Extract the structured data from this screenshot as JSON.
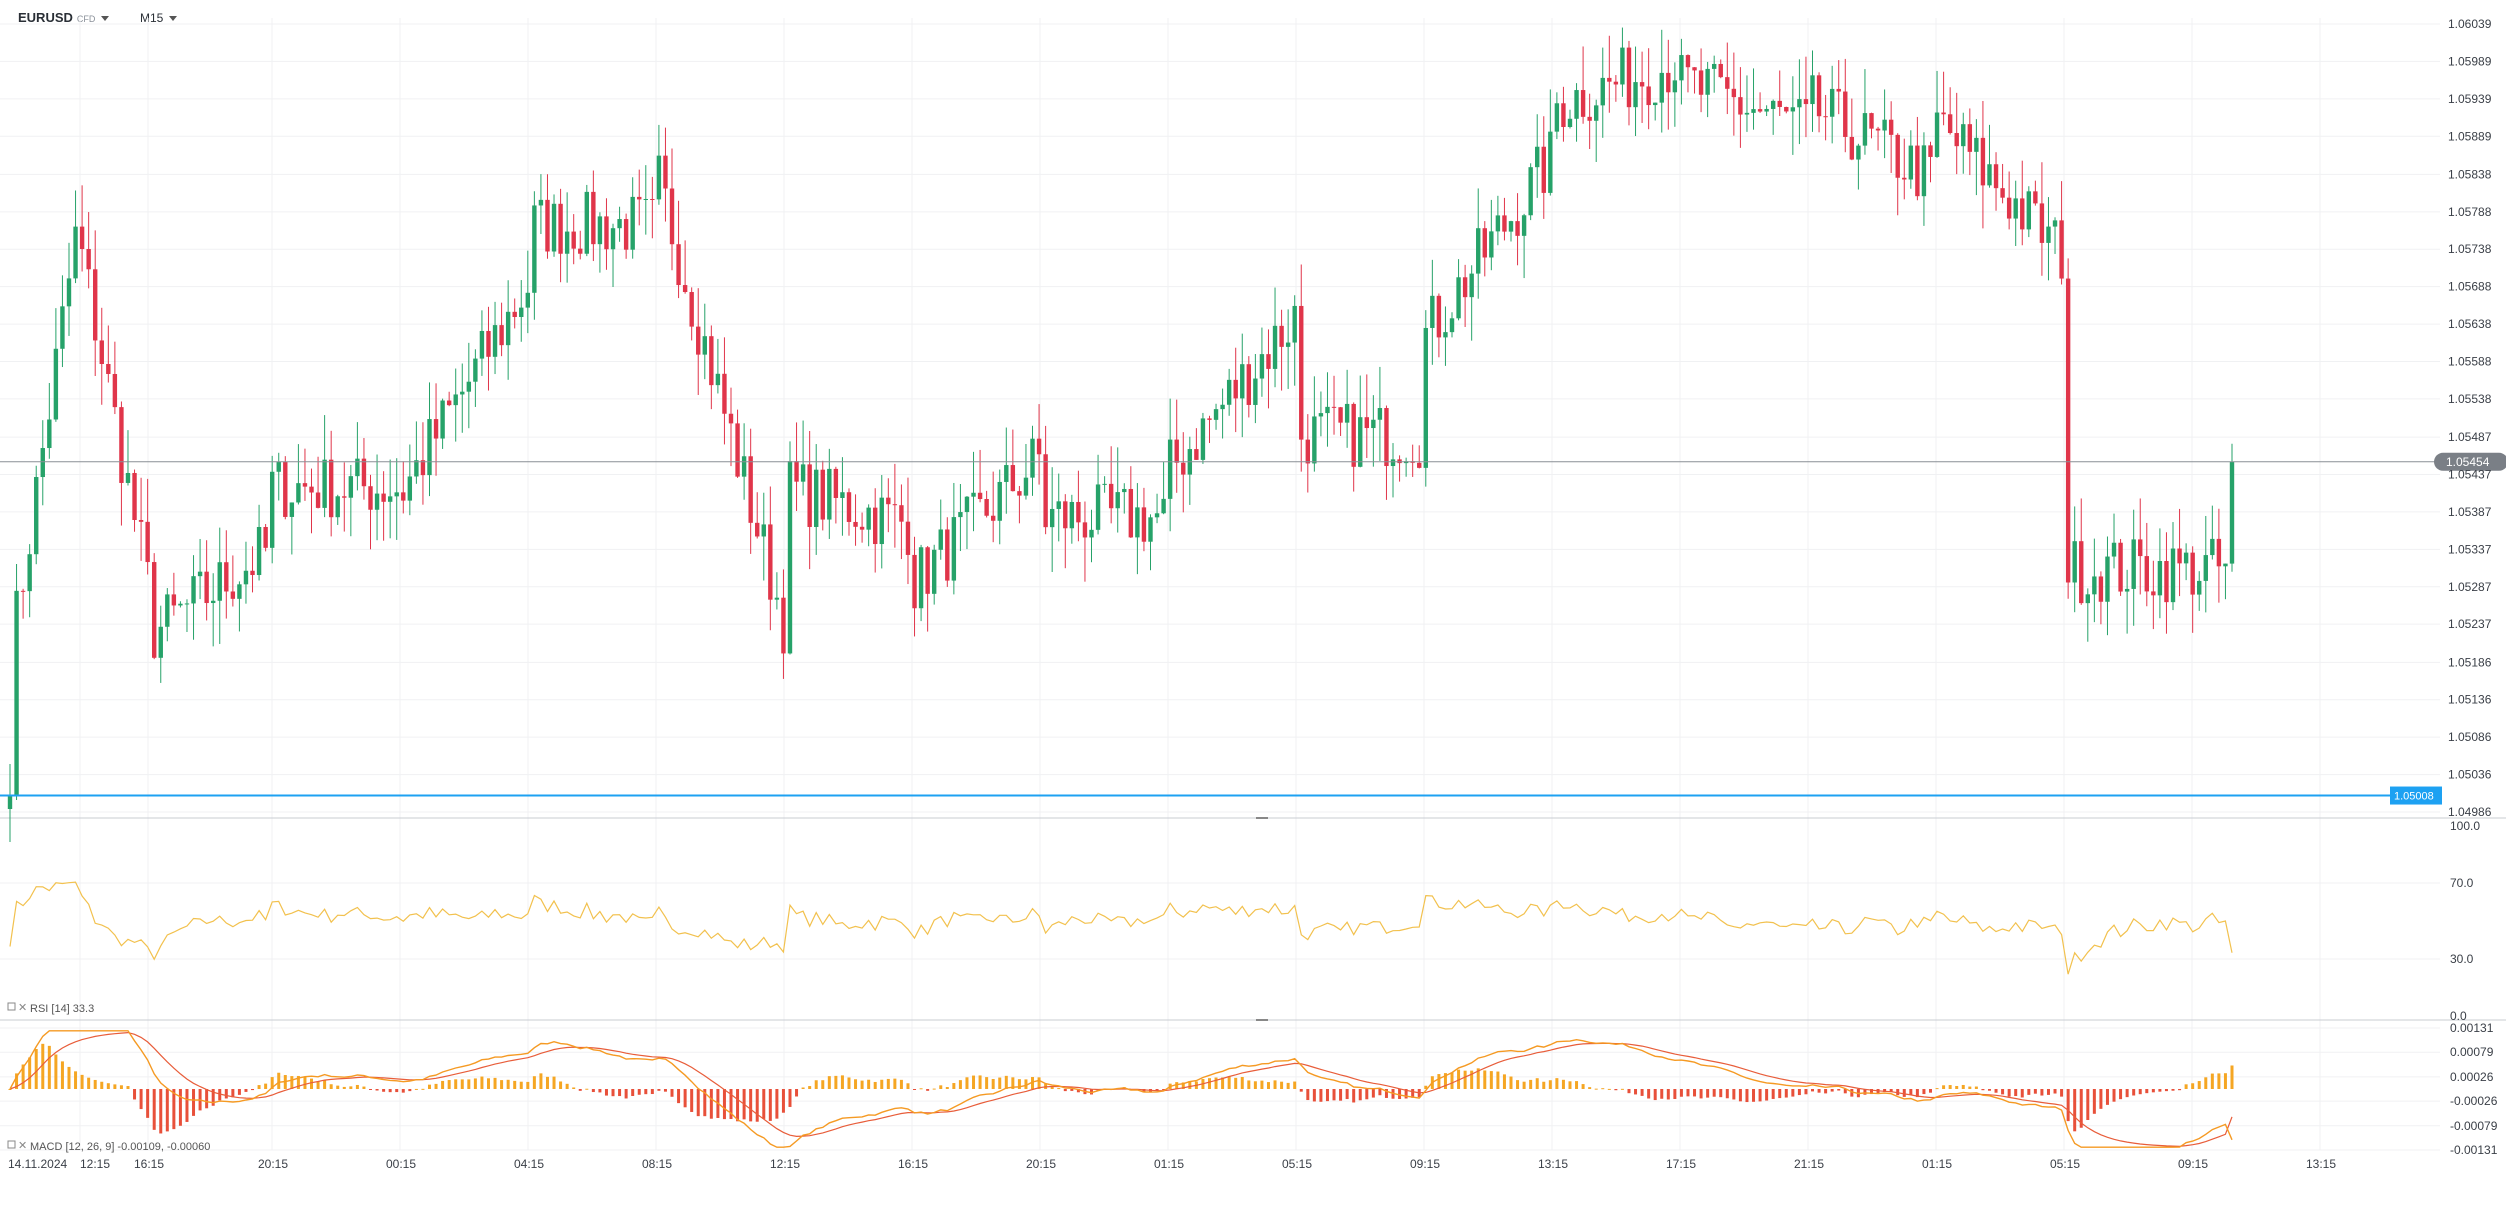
{
  "header": {
    "symbol": "EURUSD",
    "symbol_tag": "CFD",
    "timeframe": "M15"
  },
  "price_axis": {
    "ticks": [
      "1.06039",
      "1.05989",
      "1.05939",
      "1.05889",
      "1.05838",
      "1.05788",
      "1.05738",
      "1.05688",
      "1.05638",
      "1.05588",
      "1.05538",
      "1.05487",
      "1.05437",
      "1.05387",
      "1.05337",
      "1.05287",
      "1.05237",
      "1.05186",
      "1.05136",
      "1.05086",
      "1.05036",
      "1.04986"
    ],
    "current_price": "1.05454",
    "level_line": "1.05008"
  },
  "rsi_axis": {
    "ticks": [
      "100.0",
      "70.0",
      "30.0",
      "0.0"
    ]
  },
  "macd_axis": {
    "ticks": [
      "0.00131",
      "0.00079",
      "0.00026",
      "-0.00026",
      "-0.00079",
      "-0.00131"
    ]
  },
  "rsi_legend": "RSI [14]  33.3",
  "macd_legend": "MACD [12, 26, 9] -0.00109, -0.00060",
  "time_axis": [
    "14.11.2024",
    "12:15",
    "16:15",
    "20:15",
    "00:15",
    "04:15",
    "08:15",
    "12:15",
    "16:15",
    "20:15",
    "01:15",
    "05:15",
    "09:15",
    "13:15",
    "17:15",
    "21:15",
    "01:15",
    "05:15",
    "09:15",
    "13:15"
  ],
  "colors": {
    "up": "#26a269",
    "down": "#e0354a",
    "rsi": "#f2c14e",
    "macd_line": "#f59a23",
    "signal_line": "#e85d3a",
    "hist_pos": "#f5a623",
    "hist_neg": "#e8503a",
    "level": "#1da1f2",
    "grid": "#f0f1f3"
  },
  "chart_data": [
    {
      "type": "candlestick",
      "ylim": [
        1.04986,
        1.06039
      ],
      "ohlc_anchors": {
        "note_units": "price",
        "points": [
          [
            "14.11.2024",
            1.05,
            1.0517
          ],
          [
            "16:15",
            1.0579,
            1.0574
          ],
          [
            "20:15",
            1.0529,
            1.0522
          ],
          [
            "00:15",
            1.0534,
            1.0542
          ],
          [
            "04:15",
            1.0542,
            1.0541
          ],
          [
            "08:15",
            1.0569,
            1.0577
          ],
          [
            "12:15",
            1.0577,
            1.0584
          ],
          [
            "16:15",
            1.0524,
            1.0542
          ],
          [
            "20:15",
            1.0537,
            1.0529
          ],
          [
            "01:15",
            1.0546,
            1.0538
          ],
          [
            "05:15",
            1.0538,
            1.0544
          ],
          [
            "09:15",
            1.0565,
            1.0549
          ],
          [
            "13:15",
            1.0549,
            1.0562
          ],
          [
            "17:15",
            1.0586,
            1.0593
          ],
          [
            "21:15",
            1.0599,
            1.0596
          ],
          [
            "01:15",
            1.059,
            1.0593
          ],
          [
            "05:15",
            1.0583,
            1.0591
          ],
          [
            "09:15",
            1.0573,
            1.0531
          ],
          [
            "end",
            1.0531,
            1.05454
          ]
        ]
      },
      "current": 1.05454,
      "level": 1.05008
    },
    {
      "type": "line",
      "name": "RSI [14]",
      "ylim": [
        0,
        100
      ],
      "last": 33.3
    },
    {
      "type": "bar",
      "name": "MACD [12, 26, 9]",
      "ylim": [
        -0.00131,
        0.00131
      ],
      "macd": -0.00109,
      "signal": -0.0006
    }
  ]
}
